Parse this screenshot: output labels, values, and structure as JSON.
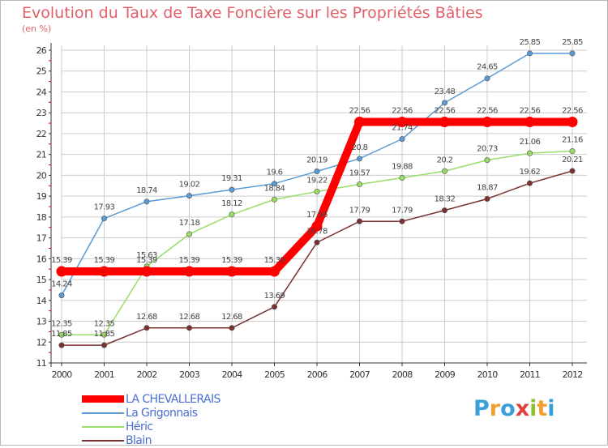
{
  "title": "Evolution du Taux de Taxe Foncière sur les Propriétés Bâties",
  "unit_label": "(en %)",
  "brand": {
    "text": "Proxiti",
    "letters": [
      "P",
      "r",
      "o",
      "x",
      "i",
      "t",
      "i"
    ],
    "colors": [
      "#3a9fd8",
      "#f0a030",
      "#3a9fd8",
      "#e04040",
      "#90c030",
      "#f0a030",
      "#3a9fd8"
    ]
  },
  "colors": {
    "title": "#e0606a",
    "axis": "#333333",
    "grid": "#cccccc",
    "tick_red": "#dd0000",
    "legend_text": "#4a6fd0"
  },
  "chart_data": {
    "type": "line",
    "x": [
      "2000",
      "2001",
      "2002",
      "2003",
      "2004",
      "2005",
      "2006",
      "2007",
      "2008",
      "2009",
      "2010",
      "2011",
      "2012"
    ],
    "ylim": [
      11,
      26
    ],
    "yticks": [
      11,
      12,
      13,
      14,
      15,
      16,
      17,
      18,
      19,
      20,
      21,
      22,
      23,
      24,
      25,
      26
    ],
    "grid": true,
    "legend_position": "bottom-left",
    "series": [
      {
        "name": "LA CHEVALLERAIS",
        "color": "#ff0000",
        "values": [
          15.39,
          15.39,
          15.39,
          15.39,
          15.39,
          15.39,
          17.56,
          22.56,
          22.56,
          22.56,
          22.56,
          22.56,
          22.56
        ],
        "labels": [
          "15.39",
          "15.39",
          "15.39",
          "15.39",
          "15.39",
          "15.39",
          "17.56",
          "22.56",
          "22.56",
          "22.56",
          "22.56",
          "22.56",
          "22.56"
        ]
      },
      {
        "name": "La Grigonnais",
        "color": "#5b9bd5",
        "values": [
          14.24,
          17.93,
          18.74,
          19.02,
          19.31,
          19.6,
          20.19,
          20.8,
          21.74,
          23.48,
          24.65,
          25.85,
          25.85
        ],
        "labels": [
          "14.24",
          "17.93",
          "18.74",
          "19.02",
          "19.31",
          "19.6",
          "20.19",
          "20.8",
          "21.74",
          "23.48",
          "24.65",
          "25.85",
          "25.85"
        ]
      },
      {
        "name": "Héric",
        "color": "#99dd66",
        "values": [
          12.35,
          12.35,
          15.63,
          17.18,
          18.12,
          18.84,
          19.22,
          19.57,
          19.88,
          20.2,
          20.73,
          21.06,
          21.16
        ],
        "labels": [
          "12.35",
          "12.35",
          "15.63",
          "17.18",
          "18.12",
          "18.84",
          "19.22",
          "19.57",
          "19.88",
          "20.2",
          "20.73",
          "21.06",
          "21.16"
        ]
      },
      {
        "name": "Blain",
        "color": "#7a3030",
        "values": [
          11.85,
          11.85,
          12.68,
          12.68,
          12.68,
          13.69,
          16.78,
          17.79,
          17.79,
          18.32,
          18.87,
          19.62,
          20.21
        ],
        "labels": [
          "11.85",
          "11.85",
          "12.68",
          "12.68",
          "12.68",
          "13.69",
          "16.78",
          "17.79",
          "17.79",
          "18.32",
          "18.87",
          "19.62",
          "20.21"
        ]
      }
    ]
  }
}
